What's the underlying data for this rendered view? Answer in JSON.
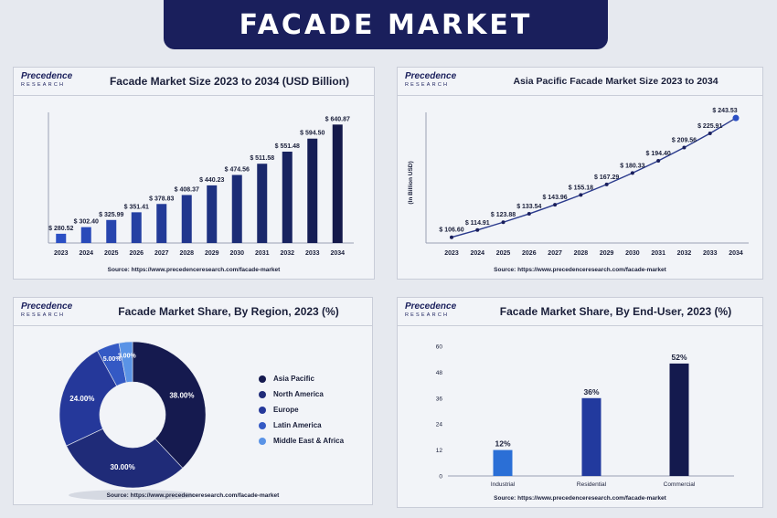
{
  "banner_title": "FACADE MARKET",
  "logo": {
    "top": "Precedence",
    "bottom": "RESEARCH"
  },
  "source": "Source: https://www.precedenceresearch.com/facade-market",
  "colors": {
    "navy": "#1a1f5c",
    "accent": "#2b6fd6",
    "panel": "#f2f4f8"
  },
  "chart_data": [
    {
      "type": "bar",
      "title": "Facade Market Size 2023 to 2034 (USD Billion)",
      "categories": [
        "2023",
        "2024",
        "2025",
        "2026",
        "2027",
        "2028",
        "2029",
        "2030",
        "2031",
        "2032",
        "2033",
        "2034"
      ],
      "values": [
        280.52,
        302.4,
        325.99,
        351.41,
        378.83,
        408.37,
        440.23,
        474.56,
        511.58,
        551.48,
        594.5,
        640.87
      ],
      "value_labels": [
        "$ 280.52",
        "$ 302.40",
        "$ 325.99",
        "$ 351.41",
        "$ 378.83",
        "$ 408.37",
        "$ 440.23",
        "$ 474.56",
        "$ 511.58",
        "$ 551.48",
        "$ 594.50",
        "$ 640.87"
      ],
      "ylim": [
        250,
        660
      ],
      "grid": false
    },
    {
      "type": "line",
      "title": "Asia Pacific Facade Market Size 2023 to 2034",
      "ylabel": "(In Billion USD)",
      "x": [
        "2023",
        "2024",
        "2025",
        "2026",
        "2027",
        "2028",
        "2029",
        "2030",
        "2031",
        "2032",
        "2033",
        "2034"
      ],
      "values": [
        106.6,
        114.91,
        123.88,
        133.54,
        143.96,
        155.18,
        167.29,
        180.33,
        194.4,
        209.56,
        225.91,
        243.53
      ],
      "value_labels": [
        "$ 106.60",
        "$ 114.91",
        "$ 123.88",
        "$ 133.54",
        "$ 143.96",
        "$ 155.18",
        "$ 167.29",
        "$ 180.33",
        "$ 194.40",
        "$ 209.56",
        "$ 225.91",
        "$ 243.53"
      ],
      "ylim": [
        100,
        250
      ],
      "grid": false
    },
    {
      "type": "pie",
      "title": "Facade Market Share, By Region, 2023 (%)",
      "categories": [
        "Asia Pacific",
        "North America",
        "Europe",
        "Latin America",
        "Middle East & Africa"
      ],
      "values": [
        38.0,
        30.0,
        24.0,
        5.0,
        3.0
      ],
      "value_labels": [
        "38.00%",
        "30.00%",
        "24.00%",
        "5.00%",
        "3.00%"
      ],
      "colors": [
        "#151a4f",
        "#1f2b78",
        "#25389a",
        "#3459c4",
        "#5a93e6"
      ],
      "legend": "right"
    },
    {
      "type": "bar",
      "title": "Facade Market Share, By End-User, 2023 (%)",
      "categories": [
        "Industrial",
        "Residential",
        "Commercial"
      ],
      "values": [
        12,
        36,
        52
      ],
      "value_labels": [
        "12%",
        "36%",
        "52%"
      ],
      "colors": [
        "#2b6fd6",
        "#223a9e",
        "#141a4e"
      ],
      "yticks": [
        "0",
        "12",
        "24",
        "36",
        "48",
        "60"
      ],
      "ylim": [
        0,
        60
      ],
      "grid": false
    }
  ]
}
